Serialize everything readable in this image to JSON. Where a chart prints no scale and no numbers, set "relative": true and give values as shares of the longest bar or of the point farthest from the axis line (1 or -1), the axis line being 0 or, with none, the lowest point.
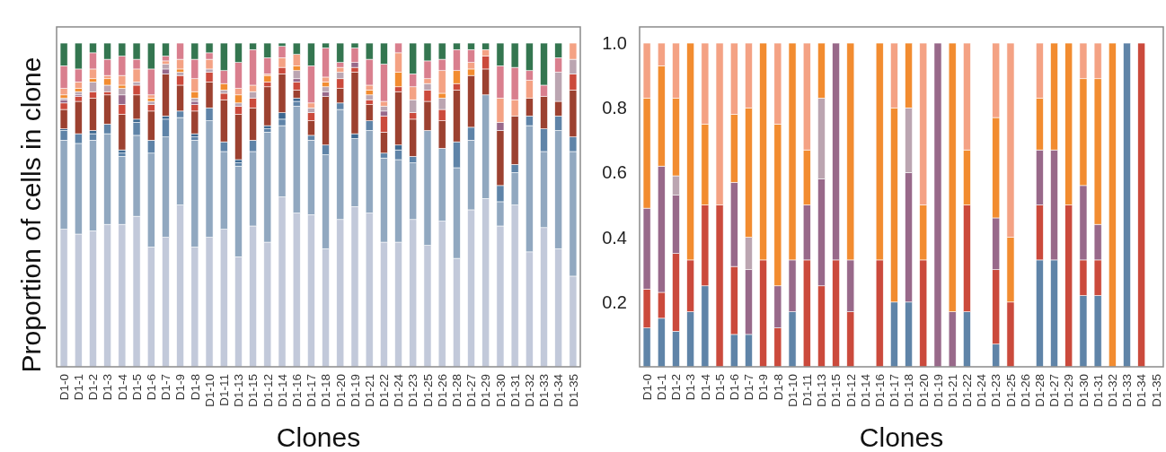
{
  "chart_data": [
    {
      "type": "bar",
      "stacked": true,
      "relative": true,
      "tick_labels": "x",
      "xlabel": "Clones",
      "ylabel": "Proportion of cells in clone",
      "categories": [
        "D1-0",
        "D1-1",
        "D1-2",
        "D1-3",
        "D1-4",
        "D1-5",
        "D1-6",
        "D1-7",
        "D1-9",
        "D1-8",
        "D1-10",
        "D1-11",
        "D1-13",
        "D1-15",
        "D1-12",
        "D1-14",
        "D1-16",
        "D1-17",
        "D1-18",
        "D1-20",
        "D1-19",
        "D1-21",
        "D1-22",
        "D1-24",
        "D1-23",
        "D1-25",
        "D1-26",
        "D1-28",
        "D1-27",
        "D1-29",
        "D1-30",
        "D1-31",
        "D1-32",
        "D1-33",
        "D1-34",
        "D1-35"
      ],
      "series": [
        {
          "color": "#c2c9da",
          "values": [
            0.425,
            0.41,
            0.42,
            0.44,
            0.44,
            0.465,
            0.37,
            0.4,
            0.5,
            0.37,
            0.4,
            0.425,
            0.34,
            0.435,
            0.385,
            0.525,
            0.475,
            0.47,
            0.365,
            0.455,
            0.495,
            0.475,
            0.385,
            0.385,
            0.455,
            0.375,
            0.45,
            0.335,
            0.485,
            0.52,
            0.435,
            0.5,
            0.355,
            0.43,
            0.365,
            0.28
          ]
        },
        {
          "color": "#91a8c0",
          "values": [
            0.275,
            0.28,
            0.28,
            0.28,
            0.21,
            0.25,
            0.29,
            0.31,
            0.27,
            0.33,
            0.36,
            0.24,
            0.28,
            0.23,
            0.34,
            0.22,
            0.33,
            0.23,
            0.29,
            0.34,
            0.21,
            0.255,
            0.26,
            0.255,
            0.175,
            0.355,
            0.225,
            0.28,
            0.215,
            0.32,
            0.075,
            0.1,
            0.39,
            0.235,
            0.365,
            0.385
          ]
        },
        {
          "color": "#5f84a8",
          "values": [
            0.03,
            0.03,
            0.02,
            0.03,
            0.01,
            0.04,
            0.04,
            0.055,
            0.02,
            0.01,
            0.04,
            0.03,
            0.01,
            0.035,
            0.01,
            0.02,
            0.015,
            0.015,
            0.03,
            0.02,
            null,
            0.03,
            0.015,
            0.03,
            0.02,
            null,
            null,
            0.08,
            0.04,
            null,
            0.05,
            0.025,
            0.03,
            0.07,
            0.045,
            0.045
          ]
        },
        {
          "color": "#3d6890",
          "values": [
            0.005,
            null,
            0.01,
            null,
            0.01,
            0.01,
            null,
            0.01,
            null,
            0.01,
            null,
            null,
            0.01,
            null,
            0.01,
            0.02,
            0.01,
            null,
            null,
            null,
            0.015,
            null,
            null,
            0.015,
            null,
            null,
            null,
            null,
            null,
            null,
            null,
            null,
            null,
            null,
            null,
            null
          ]
        },
        {
          "color": "#9c4130",
          "values": [
            0.06,
            0.1,
            0.1,
            0.09,
            0.11,
            0.075,
            0.09,
            0.13,
            0.08,
            0.07,
            0.08,
            0.13,
            0.14,
            0.1,
            0.12,
            0.12,
            0.025,
            0.045,
            0.15,
            0.045,
            0.19,
            0.05,
            0.065,
            0.165,
            0.115,
            0.09,
            0.085,
            0.16,
            0.16,
            0.08,
            0.17,
            0.15,
            0.055,
            0.1,
            0.045,
            0.145
          ]
        },
        {
          "color": "#cb4a3c",
          "values": [
            0.02,
            0.015,
            0.02,
            0.01,
            0.03,
            0.03,
            0.02,
            null,
            0.03,
            0.02,
            0.03,
            0.02,
            0.025,
            0.03,
            0.015,
            0.02,
            0.025,
            0.025,
            null,
            0.03,
            0.015,
            0.015,
            0.05,
            0.015,
            0.02,
            0.035,
            0.035,
            0.02,
            null,
            0.04,
            null,
            null,
            null,
            null,
            null,
            0.05
          ]
        },
        {
          "color": "#98698a",
          "values": [
            0.01,
            0.005,
            null,
            null,
            0.03,
            null,
            null,
            0.015,
            null,
            0.01,
            null,
            null,
            null,
            null,
            null,
            null,
            0.01,
            null,
            0.015,
            null,
            0.015,
            null,
            0.015,
            null,
            null,
            null,
            null,
            null,
            null,
            null,
            0.025,
            null,
            null,
            null,
            null,
            null
          ]
        },
        {
          "color": "#bba5b1",
          "values": [
            0.005,
            0.01,
            0.03,
            0.02,
            0.02,
            0.01,
            0.01,
            0.015,
            0.01,
            0.01,
            0.01,
            0.01,
            0.01,
            0.02,
            null,
            null,
            0.025,
            0.015,
            0.015,
            0.02,
            null,
            0.015,
            0.015,
            null,
            0.04,
            0.02,
            0.035,
            null,
            null,
            null,
            null,
            null,
            null,
            null,
            0.09,
            0.045
          ]
        },
        {
          "color": "#f28c30",
          "values": [
            0.01,
            0.01,
            0.01,
            0.02,
            0.01,
            null,
            0.01,
            null,
            0.01,
            0.02,
            null,
            0.02,
            0.025,
            null,
            0.02,
            null,
            0.015,
            null,
            0.015,
            null,
            null,
            0.015,
            null,
            0.045,
            null,
            null,
            0.015,
            0.04,
            0.02,
            null,
            null,
            null,
            null,
            null,
            null,
            null
          ]
        },
        {
          "color": "#f4a284",
          "values": [
            0.02,
            0.02,
            0.03,
            0.01,
            0.03,
            0.04,
            0.01,
            0.01,
            0.03,
            0.04,
            0.03,
            null,
            0.02,
            0.02,
            0.005,
            0.03,
            0.035,
            0.015,
            0.015,
            0.015,
            null,
            0.015,
            0.015,
            0.06,
            0.04,
            0.015,
            0.07,
            null,
            0.02,
            0.02,
            0.075,
            0.05,
            0.055,
            null,
            null,
            0.05
          ]
        },
        {
          "color": "#d97f8e",
          "values": [
            0.07,
            0.04,
            0.05,
            0.05,
            0.06,
            0.03,
            0.08,
            0.015,
            0.05,
            0.06,
            0.02,
            0.04,
            0.08,
            0.11,
            0.05,
            0.035,
            null,
            0.115,
            0.09,
            0.015,
            0.045,
            0.08,
            0.115,
            0.03,
            0.04,
            0.055,
            0.035,
            0.065,
            0.04,
            null,
            0.1,
            0.1,
            0.03,
            0.035,
            0.045,
            null
          ]
        },
        {
          "color": "#347650",
          "values": [
            0.07,
            0.08,
            0.03,
            0.05,
            0.04,
            0.05,
            0.08,
            0.04,
            null,
            0.05,
            0.03,
            0.085,
            0.06,
            0.02,
            0.045,
            0.01,
            0.035,
            0.07,
            0.015,
            0.06,
            0.015,
            0.05,
            0.065,
            null,
            0.095,
            0.055,
            0.05,
            0.02,
            0.02,
            0.02,
            0.07,
            0.075,
            0.085,
            0.13,
            0.045,
            null
          ]
        }
      ]
    },
    {
      "type": "bar",
      "stacked": true,
      "xlabel": "Clones",
      "ylim": [
        0,
        1.05
      ],
      "yticks": [
        0.2,
        0.4,
        0.6,
        0.8,
        {
          "value": 1,
          "label": "1.0"
        }
      ],
      "categories": [
        "D1-0",
        "D1-1",
        "D1-2",
        "D1-3",
        "D1-4",
        "D1-5",
        "D1-6",
        "D1-7",
        "D1-9",
        "D1-8",
        "D1-10",
        "D1-11",
        "D1-13",
        "D1-15",
        "D1-12",
        "D1-14",
        "D1-16",
        "D1-17",
        "D1-18",
        "D1-20",
        "D1-19",
        "D1-21",
        "D1-22",
        "D1-24",
        "D1-23",
        "D1-25",
        "D1-26",
        "D1-28",
        "D1-27",
        "D1-29",
        "D1-30",
        "D1-31",
        "D1-32",
        "D1-33",
        "D1-34",
        "D1-35"
      ],
      "series": [
        {
          "color": "#5f84a8",
          "values": [
            0.12,
            0.15,
            0.11,
            0.17,
            0.25,
            null,
            0.1,
            0.1,
            null,
            null,
            0.17,
            null,
            null,
            null,
            null,
            null,
            null,
            0.2,
            0.2,
            null,
            null,
            null,
            0.17,
            null,
            0.07,
            null,
            null,
            0.33,
            0.33,
            null,
            0.22,
            0.22,
            null,
            1,
            null,
            null
          ]
        },
        {
          "color": "#cb4a3c",
          "values": [
            0.12,
            0.08,
            0.24,
            0.16,
            0.25,
            0.5,
            0.21,
            null,
            0.33,
            0.12,
            null,
            0.33,
            0.25,
            0.33,
            0.17,
            null,
            0.33,
            null,
            null,
            0.33,
            null,
            null,
            0.33,
            null,
            0.23,
            0.2,
            null,
            0.17,
            null,
            0.5,
            0.11,
            0.11,
            null,
            null,
            1,
            null
          ]
        },
        {
          "color": "#98698a",
          "values": [
            0.25,
            0.39,
            0.18,
            null,
            null,
            null,
            0.26,
            0.2,
            null,
            0.13,
            0.16,
            0.17,
            0.33,
            0.67,
            0.16,
            null,
            null,
            null,
            0.4,
            null,
            1,
            0.17,
            null,
            null,
            0.16,
            null,
            null,
            0.17,
            0.34,
            null,
            0.23,
            0.11,
            null,
            null,
            null,
            null
          ]
        },
        {
          "color": "#bba5b1",
          "values": [
            null,
            null,
            0.06,
            null,
            null,
            null,
            null,
            0.1,
            null,
            null,
            null,
            null,
            0.25,
            null,
            null,
            null,
            null,
            null,
            0.2,
            null,
            null,
            null,
            null,
            null,
            null,
            null,
            null,
            null,
            null,
            null,
            null,
            null,
            null,
            null,
            null,
            null
          ]
        },
        {
          "color": "#f28c30",
          "values": [
            0.34,
            0.31,
            0.24,
            0.67,
            0.25,
            null,
            0.21,
            0.4,
            0.67,
            0.5,
            0.67,
            0.17,
            0.17,
            null,
            0.67,
            null,
            0.67,
            0.6,
            0.2,
            0.17,
            null,
            0.83,
            0.17,
            null,
            0.31,
            0.2,
            null,
            0.16,
            0.33,
            0.5,
            0.33,
            0.45,
            1,
            null,
            null,
            null
          ]
        },
        {
          "color": "#f4a284",
          "values": [
            0.17,
            0.07,
            0.17,
            null,
            0.25,
            0.5,
            0.22,
            0.2,
            null,
            0.25,
            null,
            0.33,
            null,
            null,
            null,
            null,
            null,
            0.2,
            null,
            0.5,
            null,
            null,
            0.33,
            null,
            0.23,
            0.6,
            null,
            0.17,
            null,
            null,
            0.11,
            0.11,
            null,
            null,
            null,
            null
          ]
        }
      ]
    }
  ]
}
